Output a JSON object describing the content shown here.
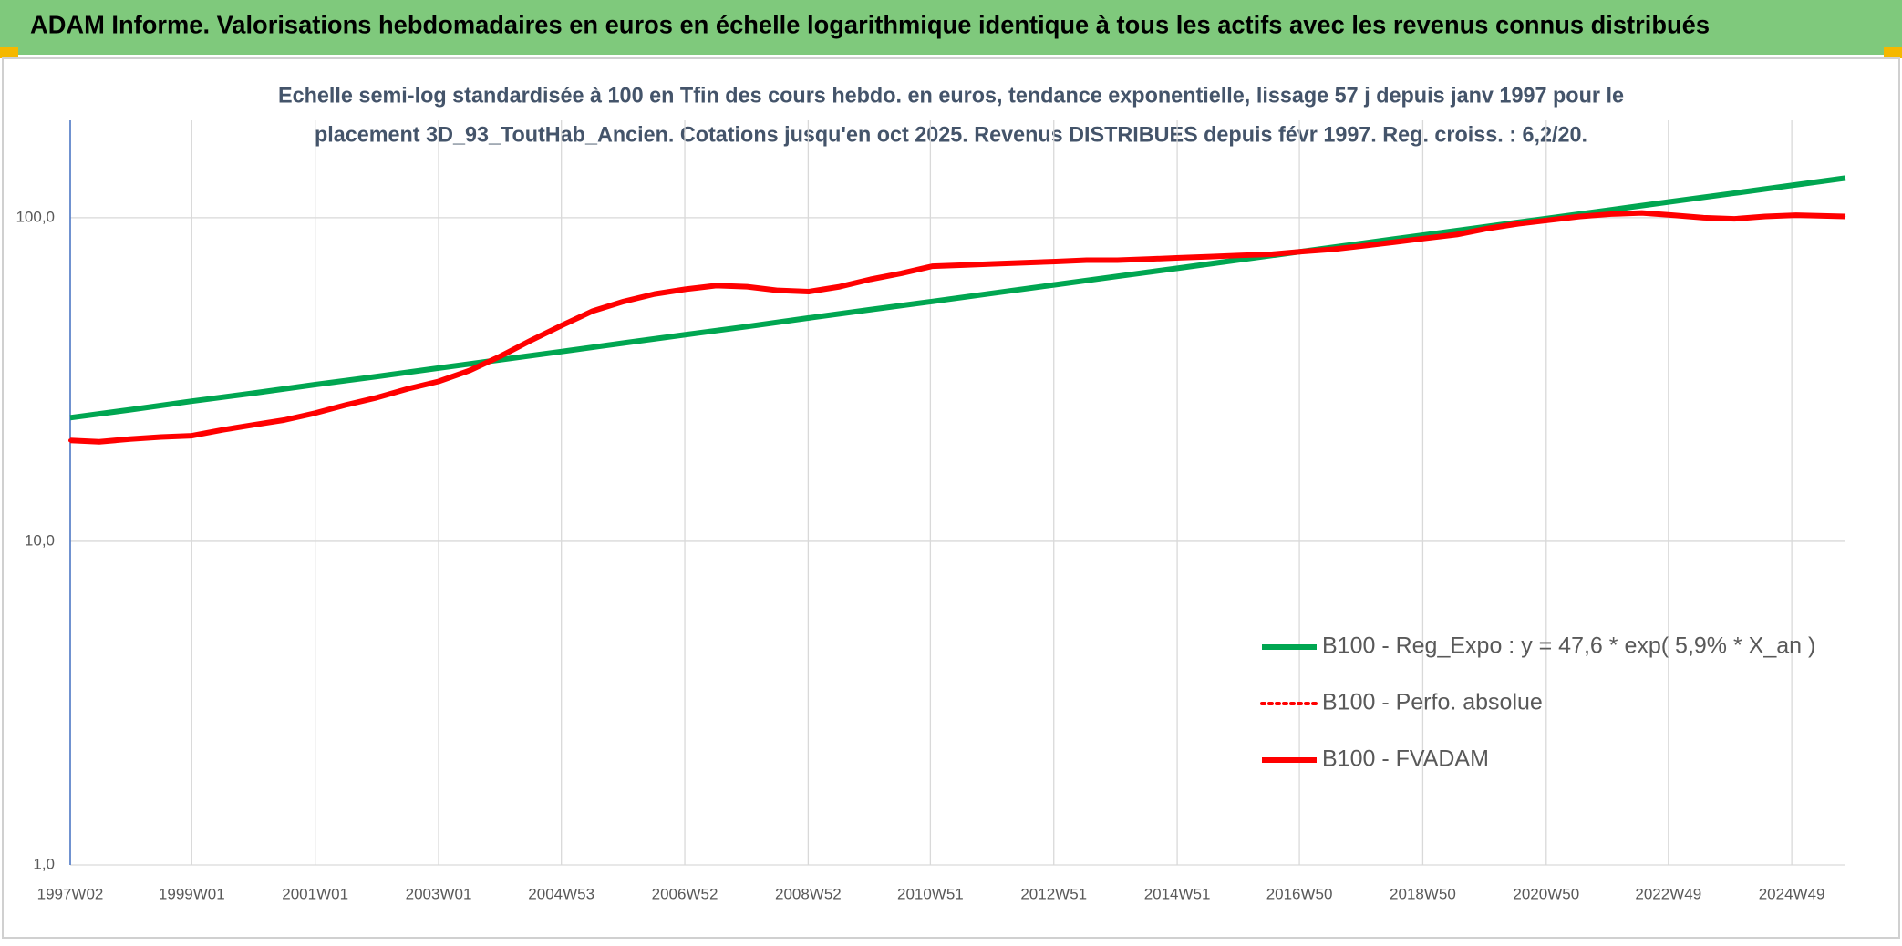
{
  "chart_data": {
    "type": "line",
    "title": "ADAM Informe. Valorisations hebdomadaires en euros en échelle logarithmique identique à tous les actifs avec les revenus connus distribués",
    "subtitle": [
      "Echelle semi-log standardisée à 100 en Tfin des cours hebdo. en euros, tendance exponentielle, lissage 57 j depuis janv 1997 pour le",
      "placement 3D_93_ToutHab_Ancien. Cotations jusqu'en oct 2025. Revenus DISTRIBUES depuis févr 1997. Reg. croiss. : 6,2/20."
    ],
    "log_scale": true,
    "grid": true,
    "xlim": [
      1997.03,
      2025.8
    ],
    "xticks": [
      {
        "value": 1997.03,
        "label": "1997W02"
      },
      {
        "value": 1999.0,
        "label": "1999W01"
      },
      {
        "value": 2001.0,
        "label": "2001W01"
      },
      {
        "value": 2003.0,
        "label": "2003W01"
      },
      {
        "value": 2004.99,
        "label": "2004W53"
      },
      {
        "value": 2006.99,
        "label": "2006W52"
      },
      {
        "value": 2008.99,
        "label": "2008W52"
      },
      {
        "value": 2010.97,
        "label": "2010W51"
      },
      {
        "value": 2012.97,
        "label": "2012W51"
      },
      {
        "value": 2014.97,
        "label": "2014W51"
      },
      {
        "value": 2016.95,
        "label": "2016W50"
      },
      {
        "value": 2018.95,
        "label": "2018W50"
      },
      {
        "value": 2020.95,
        "label": "2020W50"
      },
      {
        "value": 2022.93,
        "label": "2022W49"
      },
      {
        "value": 2024.93,
        "label": "2024W49"
      }
    ],
    "ylim": [
      1,
      200
    ],
    "yticks": [
      {
        "value": 1,
        "label": "1,0"
      },
      {
        "value": 10,
        "label": "10,0"
      },
      {
        "value": 100,
        "label": "100,0"
      }
    ],
    "series": [
      {
        "name": "B100 - Reg_Expo : y = 47,6 * exp( 5,9% *  X_an )",
        "color": "#00a651",
        "style": "solid",
        "x": [
          1997.03,
          1998,
          1999,
          2000,
          2001,
          2002,
          2003,
          2004,
          2005,
          2006,
          2007,
          2008,
          2009,
          2010,
          2011,
          2012,
          2013,
          2014,
          2015,
          2016,
          2017,
          2018,
          2019,
          2020,
          2021,
          2022,
          2023,
          2024,
          2025,
          2025.8
        ],
        "values": [
          24.1,
          25.5,
          27.1,
          28.7,
          30.5,
          32.3,
          34.3,
          36.4,
          38.6,
          41.0,
          43.5,
          46.1,
          49.0,
          52.0,
          55.1,
          58.5,
          62.1,
          65.9,
          69.9,
          74.2,
          78.7,
          83.5,
          88.6,
          94.0,
          99.7,
          105.8,
          112.3,
          119.1,
          126.4,
          132.6
        ]
      },
      {
        "name": "B100 - Perfo. absolue",
        "color": "#ff0000",
        "style": "dotted",
        "x": [
          1997.03,
          1997.5,
          1998,
          1998.5,
          1999,
          1999.5,
          2000,
          2000.5,
          2001,
          2001.5,
          2002,
          2002.5,
          2003,
          2003.5,
          2004,
          2004.5,
          2005,
          2005.5,
          2006,
          2006.5,
          2007,
          2007.5,
          2008,
          2008.5,
          2009,
          2009.5,
          2010,
          2010.5,
          2011,
          2011.5,
          2012,
          2012.5,
          2013,
          2013.5,
          2014,
          2014.5,
          2015,
          2015.5,
          2016,
          2016.5,
          2017,
          2017.5,
          2018,
          2018.5,
          2019,
          2019.5,
          2020,
          2020.5,
          2021,
          2021.5,
          2022,
          2022.5,
          2023,
          2023.5,
          2024,
          2024.5,
          2025,
          2025.8
        ],
        "values": [
          20.5,
          20.3,
          20.7,
          21.0,
          21.2,
          22.1,
          22.9,
          23.7,
          24.9,
          26.4,
          27.8,
          29.6,
          31.2,
          33.7,
          37.3,
          41.8,
          46.5,
          51.5,
          55.1,
          58.1,
          60.1,
          61.7,
          61.2,
          59.6,
          59.1,
          61.2,
          64.5,
          67.3,
          70.8,
          71.4,
          72.0,
          72.6,
          73.2,
          73.9,
          73.9,
          74.5,
          75.2,
          75.8,
          76.5,
          77.1,
          78.6,
          79.9,
          81.9,
          84.1,
          86.4,
          88.7,
          92.6,
          95.8,
          98.3,
          100.9,
          102.6,
          103.5,
          101.8,
          100.0,
          99.2,
          100.9,
          101.8,
          100.9
        ]
      },
      {
        "name": "B100 - FVADAM",
        "color": "#ff0000",
        "style": "solid",
        "x": [
          1997.03,
          1997.5,
          1998,
          1998.5,
          1999,
          1999.5,
          2000,
          2000.5,
          2001,
          2001.5,
          2002,
          2002.5,
          2003,
          2003.5,
          2004,
          2004.5,
          2005,
          2005.5,
          2006,
          2006.5,
          2007,
          2007.5,
          2008,
          2008.5,
          2009,
          2009.5,
          2010,
          2010.5,
          2011,
          2011.5,
          2012,
          2012.5,
          2013,
          2013.5,
          2014,
          2014.5,
          2015,
          2015.5,
          2016,
          2016.5,
          2017,
          2017.5,
          2018,
          2018.5,
          2019,
          2019.5,
          2020,
          2020.5,
          2021,
          2021.5,
          2022,
          2022.5,
          2023,
          2023.5,
          2024,
          2024.5,
          2025,
          2025.8
        ],
        "values": [
          20.5,
          20.3,
          20.7,
          21.0,
          21.2,
          22.1,
          22.9,
          23.7,
          24.9,
          26.4,
          27.8,
          29.6,
          31.2,
          33.7,
          37.3,
          41.8,
          46.5,
          51.5,
          55.1,
          58.1,
          60.1,
          61.7,
          61.2,
          59.6,
          59.1,
          61.2,
          64.5,
          67.3,
          70.8,
          71.4,
          72.0,
          72.6,
          73.2,
          73.9,
          73.9,
          74.5,
          75.2,
          75.8,
          76.5,
          77.1,
          78.6,
          79.9,
          81.9,
          84.1,
          86.4,
          88.7,
          92.6,
          95.8,
          98.3,
          100.9,
          102.6,
          103.5,
          101.8,
          100.0,
          99.2,
          100.9,
          101.8,
          100.9
        ]
      }
    ],
    "legend_position": "lower right"
  }
}
